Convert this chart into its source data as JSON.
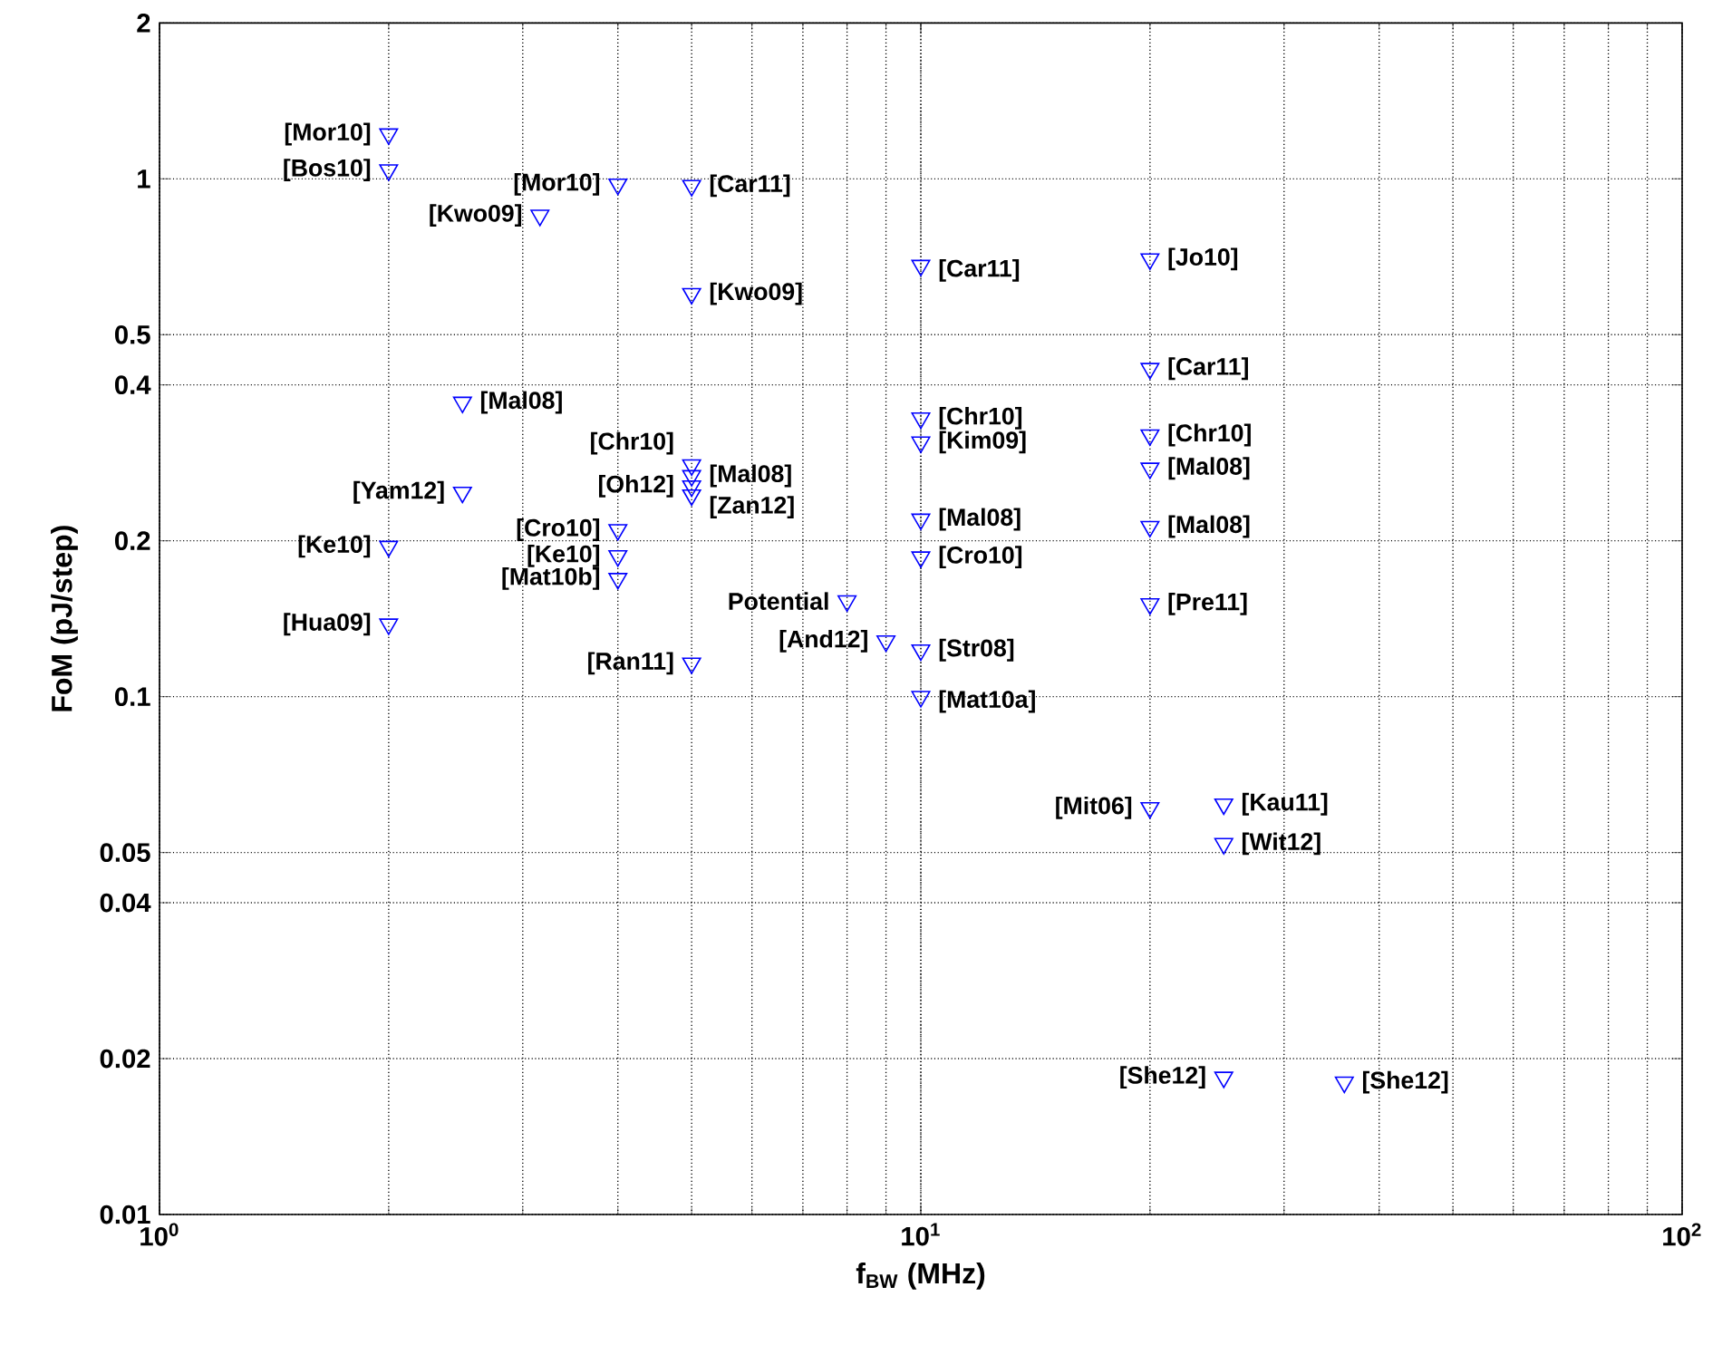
{
  "chart_data": {
    "type": "scatter",
    "xlabel": "f$_{BW}$ (MHz)",
    "ylabel": "FoM (pJ/step)",
    "log": "xy",
    "grid": true,
    "marker": "triangle",
    "xlim": [
      1,
      100
    ],
    "xticks": [
      {
        "value": 1,
        "label": "10$^{0}$"
      },
      {
        "value": 10,
        "label": "10$^{1}$"
      },
      {
        "value": 100,
        "label": "10$^{2}$"
      }
    ],
    "ylim": [
      0.01,
      2
    ],
    "yticks": [
      0.01,
      0.02,
      0.04,
      0.05,
      0.1,
      0.2,
      0.4,
      0.5,
      1,
      2
    ],
    "series": [
      {
        "color": "#0000ff",
        "x": [
          2,
          2,
          4,
          5,
          3.16,
          5,
          10,
          20,
          20,
          2.5,
          10,
          10,
          20,
          20,
          20,
          10,
          10,
          20,
          5,
          5,
          5,
          5,
          2.5,
          2,
          4,
          4,
          4,
          2,
          8,
          9,
          10,
          5,
          10,
          20,
          25,
          25,
          25,
          36
        ],
        "values": [
          1.22,
          1.04,
          0.976,
          0.97,
          0.85,
          0.6,
          0.68,
          0.7,
          0.43,
          0.37,
          0.345,
          0.31,
          0.32,
          0.276,
          0.213,
          0.22,
          0.186,
          0.151,
          0.28,
          0.267,
          0.255,
          0.245,
          0.248,
          0.195,
          0.21,
          0.187,
          0.169,
          0.138,
          0.153,
          0.128,
          0.123,
          0.116,
          0.1,
          0.061,
          0.062,
          0.052,
          0.0184,
          0.018
        ]
      }
    ],
    "annotations": [
      {
        "text": "[Mor10]",
        "x": 2,
        "y": 1.22
      },
      {
        "text": "[Bos10]",
        "x": 2,
        "y": 1.04
      },
      {
        "text": "[Mor10]",
        "x": 4,
        "y": 0.976
      },
      {
        "text": "[Car11]",
        "x": 5,
        "y": 0.97
      },
      {
        "text": "[Kwo09]",
        "x": 3.16,
        "y": 0.85
      },
      {
        "text": "[Kwo09]",
        "x": 5,
        "y": 0.6
      },
      {
        "text": "[Car11]",
        "x": 10,
        "y": 0.68
      },
      {
        "text": "[Jo10]",
        "x": 20,
        "y": 0.7
      },
      {
        "text": "[Car11]",
        "x": 20,
        "y": 0.43
      },
      {
        "text": "[Mal08]",
        "x": 2.5,
        "y": 0.37
      },
      {
        "text": "[Chr10]",
        "x": 10,
        "y": 0.345
      },
      {
        "text": "[Kim09]",
        "x": 10,
        "y": 0.31
      },
      {
        "text": "[Chr10]",
        "x": 20,
        "y": 0.32
      },
      {
        "text": "[Mal08]",
        "x": 20,
        "y": 0.276
      },
      {
        "text": "[Mal08]",
        "x": 20,
        "y": 0.213
      },
      {
        "text": "[Mal08]",
        "x": 10,
        "y": 0.22
      },
      {
        "text": "[Cro10]",
        "x": 10,
        "y": 0.186
      },
      {
        "text": "[Pre11]",
        "x": 20,
        "y": 0.151
      },
      {
        "text": "[Chr10]",
        "x": 5,
        "y": 0.28
      },
      {
        "text": "[Mal08]",
        "x": 5,
        "y": 0.267
      },
      {
        "text": "[Oh12]",
        "x": 5,
        "y": 0.255
      },
      {
        "text": "[Zan12]",
        "x": 5,
        "y": 0.245
      },
      {
        "text": "[Yam12]",
        "x": 2.5,
        "y": 0.248
      },
      {
        "text": "[Ke10]",
        "x": 2,
        "y": 0.195
      },
      {
        "text": "[Cro10]",
        "x": 4,
        "y": 0.21
      },
      {
        "text": "[Ke10]",
        "x": 4,
        "y": 0.187
      },
      {
        "text": "[Mat10b]",
        "x": 4,
        "y": 0.169
      },
      {
        "text": "[Hua09]",
        "x": 2,
        "y": 0.138
      },
      {
        "text": "Potential",
        "x": 8,
        "y": 0.153
      },
      {
        "text": "[And12]",
        "x": 9,
        "y": 0.128
      },
      {
        "text": "[Str08]",
        "x": 10,
        "y": 0.123
      },
      {
        "text": "[Ran11]",
        "x": 5,
        "y": 0.116
      },
      {
        "text": "[Mat10a]",
        "x": 10,
        "y": 0.1
      },
      {
        "text": "[Mit06]",
        "x": 20,
        "y": 0.061
      },
      {
        "text": "[Kau11]",
        "x": 25,
        "y": 0.062
      },
      {
        "text": "[Wit12]",
        "x": 25,
        "y": 0.052
      },
      {
        "text": "[She12]",
        "x": 25,
        "y": 0.0184
      },
      {
        "text": "[She12]",
        "x": 36,
        "y": 0.018
      }
    ]
  }
}
